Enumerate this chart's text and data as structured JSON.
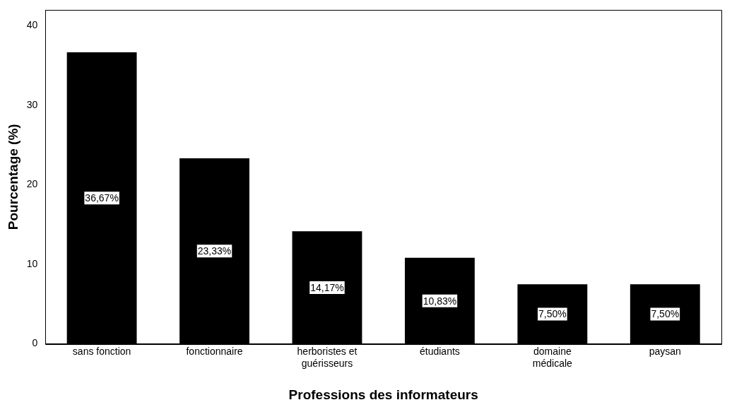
{
  "chart_data": {
    "type": "bar",
    "xlabel": "Professions des informateurs",
    "ylabel": "Pourcentage (%)",
    "categories": [
      "sans fonction",
      "fonctionnaire",
      "herboristes et guérisseurs",
      "étudiants",
      "domaine médicale",
      "paysan"
    ],
    "values": [
      36.67,
      23.33,
      14.17,
      10.83,
      7.5,
      7.5
    ],
    "value_labels": [
      "36,67%",
      "23,33%",
      "14,17%",
      "10,83%",
      "7,50%",
      "7,50%"
    ],
    "color": "#000000",
    "ylim": [
      0,
      42
    ],
    "yticks": [
      0,
      10,
      20,
      30,
      40
    ],
    "grid": false,
    "legend": false
  }
}
